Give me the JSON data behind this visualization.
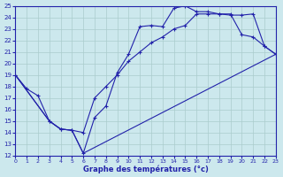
{
  "xlabel": "Graphe des températures (°c)",
  "bg_color": "#cce8ed",
  "line_color": "#2222aa",
  "grid_color": "#aacccc",
  "ylim": [
    12,
    25
  ],
  "xlim": [
    0,
    23
  ],
  "yticks": [
    12,
    13,
    14,
    15,
    16,
    17,
    18,
    19,
    20,
    21,
    22,
    23,
    24,
    25
  ],
  "xticks": [
    0,
    1,
    2,
    3,
    4,
    5,
    6,
    7,
    8,
    9,
    10,
    11,
    12,
    13,
    14,
    15,
    16,
    17,
    18,
    19,
    20,
    21,
    22,
    23
  ],
  "line_top_x": [
    0,
    1,
    2,
    3,
    4,
    5,
    6,
    7,
    8,
    9,
    10,
    11,
    12,
    13,
    14,
    15,
    16,
    17,
    18,
    19,
    20,
    21,
    22,
    23
  ],
  "line_top_y": [
    19.0,
    17.8,
    17.2,
    15.0,
    14.3,
    14.2,
    12.2,
    15.3,
    16.3,
    19.2,
    20.8,
    23.2,
    23.3,
    23.2,
    24.8,
    25.0,
    24.5,
    24.5,
    24.3,
    24.3,
    22.5,
    22.3,
    21.5,
    20.8
  ],
  "line_mid_x": [
    0,
    3,
    4,
    5,
    6,
    7,
    8,
    9,
    10,
    11,
    12,
    13,
    14,
    15,
    16,
    17,
    18,
    19,
    20,
    21,
    22,
    23
  ],
  "line_mid_y": [
    19.0,
    15.0,
    14.3,
    14.2,
    14.0,
    17.0,
    18.0,
    19.0,
    20.2,
    21.0,
    21.8,
    22.3,
    23.0,
    23.3,
    24.3,
    24.3,
    24.3,
    24.2,
    24.2,
    24.3,
    21.5,
    20.8
  ],
  "line_bot_x": [
    0,
    3,
    4,
    5,
    6,
    23
  ],
  "line_bot_y": [
    19.0,
    15.0,
    14.3,
    14.2,
    12.2,
    20.8
  ]
}
